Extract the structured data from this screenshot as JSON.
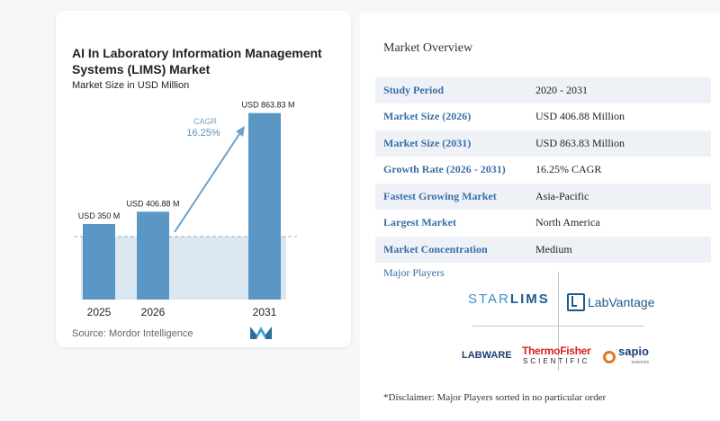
{
  "chart_data": {
    "type": "bar",
    "title": "AI In Laboratory Information Management Systems (LIMS) Market",
    "subtitle": "Market Size in USD Million",
    "categories": [
      "2025",
      "2026",
      "2031"
    ],
    "values": [
      350,
      406.88,
      863.83
    ],
    "data_labels": [
      "USD 350 M",
      "USD 406.88 M",
      "USD 863.83 M"
    ],
    "cagr_label": "CAGR",
    "cagr_value": "16.25%",
    "ylim": [
      0,
      900
    ],
    "colors": {
      "bar": "#5b97c4",
      "bar_light": "#8fbcdc",
      "shade": "#dce8f1",
      "arrow": "#6fa1c9",
      "dashed": "#8ab0cc"
    }
  },
  "source": "Source: Mordor Intelligence",
  "overview": {
    "title": "Market Overview",
    "rows": [
      {
        "label": "Study Period",
        "value": "2020 - 2031"
      },
      {
        "label": "Market Size (2026)",
        "value": "USD 406.88 Million"
      },
      {
        "label": "Market Size (2031)",
        "value": "USD 863.83 Million"
      },
      {
        "label": "Growth Rate (2026 - 2031)",
        "value": "16.25% CAGR"
      },
      {
        "label": "Fastest Growing Market",
        "value": "Asia-Pacific"
      },
      {
        "label": "Largest Market",
        "value": "North America"
      },
      {
        "label": "Market Concentration",
        "value": "Medium"
      }
    ],
    "players_title": "Major Players",
    "players": {
      "starlims_a": "STAR",
      "starlims_b": "LIMS",
      "labvantage": "LabVantage",
      "labware": "LABWARE",
      "thermo_top": "ThermoFisher",
      "thermo_bottom": "SCIENTIFIC",
      "sapio": "sapio",
      "sapio_sub": "sciences"
    },
    "disclaimer": "*Disclaimer: Major Players sorted in no particular order"
  }
}
